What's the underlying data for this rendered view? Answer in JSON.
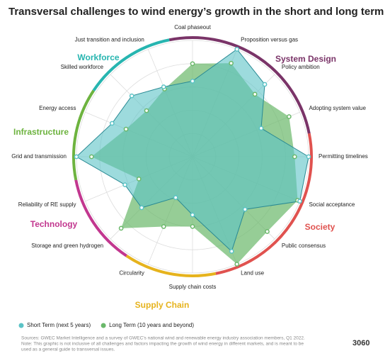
{
  "chart_data": {
    "type": "radar",
    "title": "Transversal challenges to wind energy’s growth in the short and long term",
    "categories": [
      "Coal phaseout",
      "Proposition versus gas",
      "Policy ambition",
      "Adopting system value",
      "Permitting timelines",
      "Social acceptance",
      "Public consensus",
      "Land use",
      "Supply chain costs",
      "Circularity",
      "Storage and green hydrogen",
      "Reliability of RE supply",
      "Grid and transmission",
      "Energy access",
      "Skilled workforce",
      "Just transition and inclusion"
    ],
    "series": [
      {
        "name": "Long Term (10 years and beyond)",
        "color": "#6ab86a",
        "values": [
          8,
          8.7,
          7.6,
          9,
          8.8,
          9.8,
          9.1,
          10,
          6,
          6.5,
          8.7,
          5,
          8.7,
          6.2,
          5.6,
          6.3
        ]
      },
      {
        "name": "Short Term (next 5 years)",
        "color": "#5bc3c6",
        "values": [
          6.5,
          10,
          8.8,
          6.4,
          10,
          10,
          6.4,
          8.8,
          5,
          3.8,
          6.2,
          6.3,
          10,
          7.5,
          7.4,
          6.5
        ]
      }
    ],
    "groups": [
      {
        "name": "System Design",
        "color": "#7a3468",
        "members": [
          "Coal phaseout",
          "Proposition versus gas",
          "Policy ambition",
          "Adopting system value"
        ]
      },
      {
        "name": "Society",
        "color": "#e0524f",
        "members": [
          "Permitting timelines",
          "Social acceptance",
          "Public consensus",
          "Land use"
        ]
      },
      {
        "name": "Supply Chain",
        "color": "#e6b31d",
        "members": [
          "Supply chain costs",
          "Circularity"
        ]
      },
      {
        "name": "Technology",
        "color": "#c2378f",
        "members": [
          "Storage and green hydrogen",
          "Reliability of RE supply"
        ]
      },
      {
        "name": "Infrastructure",
        "color": "#6db33f",
        "members": [
          "Grid and transmission",
          "Energy access"
        ]
      },
      {
        "name": "Workforce",
        "color": "#27b5b0",
        "members": [
          "Skilled workforce",
          "Just transition and inclusion"
        ]
      }
    ],
    "rlim": [
      0,
      10
    ],
    "rticks": [
      2,
      4,
      6,
      8,
      10
    ],
    "grid": true,
    "notes": [
      "Sources: GWEC Market Intelligence and a survey of GWEC's national wind and renewable energy industry association members, Q1 2022.",
      "Note: This graphic is not inclusive of all challenges and factors impacting the growth of wind energy in different markets, and is meant to be",
      "used as a general guide to transversal issues."
    ],
    "watermark": "3060"
  }
}
